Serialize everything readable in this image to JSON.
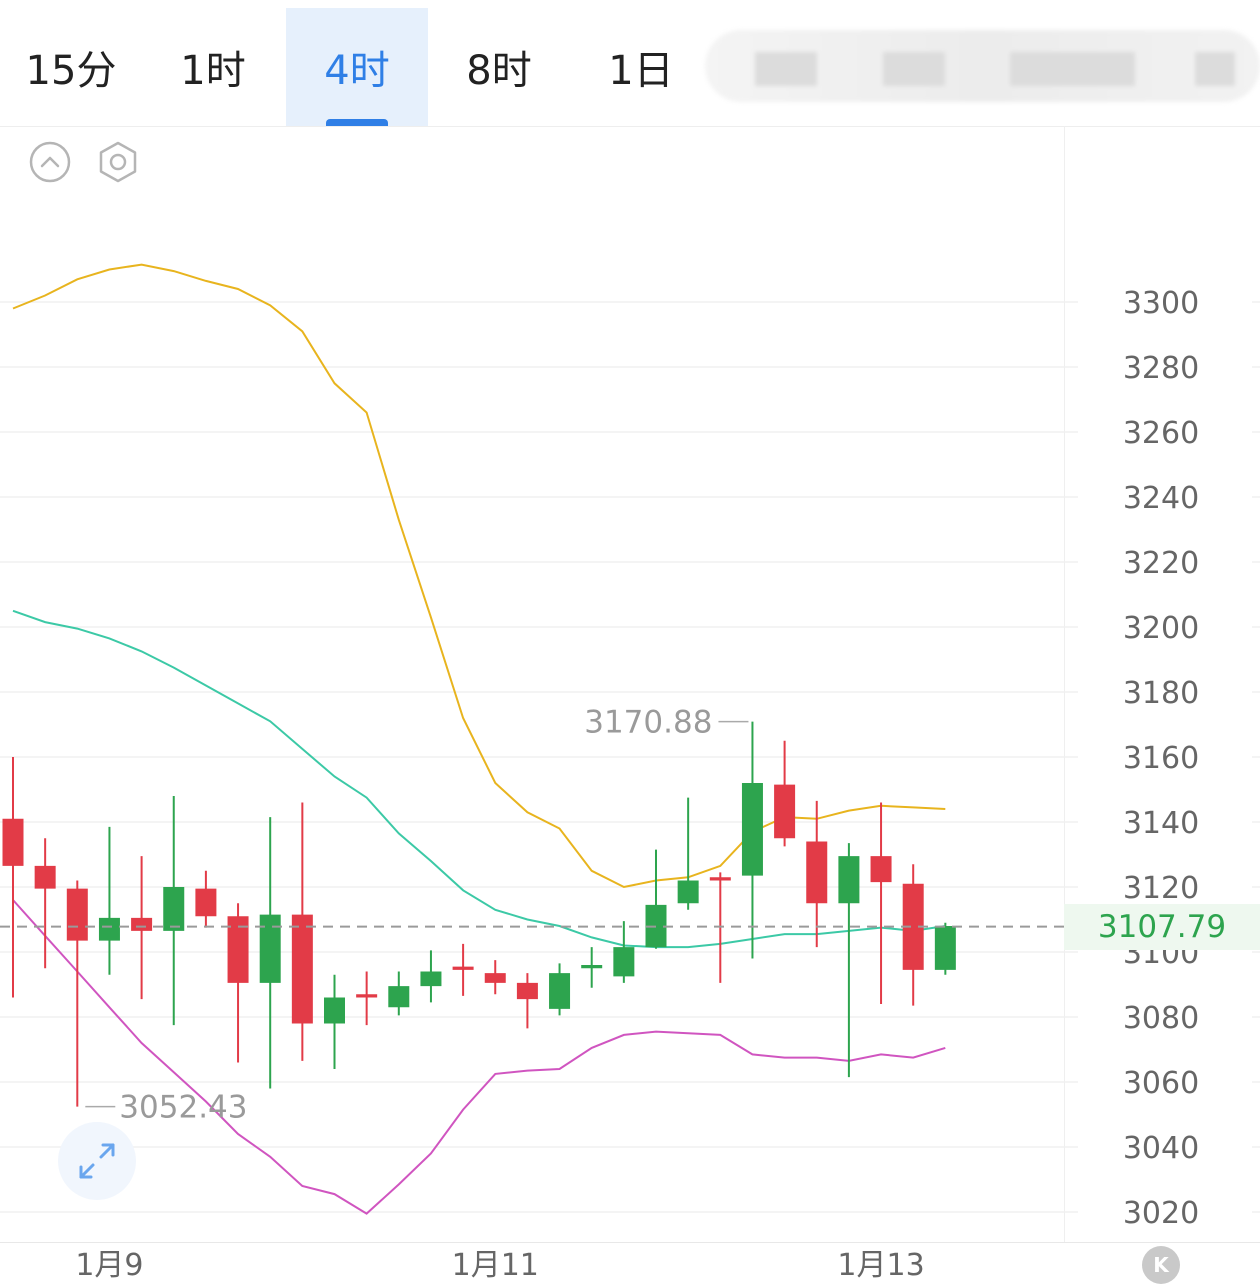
{
  "tabs": [
    {
      "label": "15分",
      "active": false
    },
    {
      "label": "1时",
      "active": false
    },
    {
      "label": "4时",
      "active": true
    },
    {
      "label": "8时",
      "active": false
    },
    {
      "label": "1日",
      "active": false
    }
  ],
  "icons": {
    "collapse": "chevron-up-circle-icon",
    "settings": "hexagon-settings-icon",
    "expand": "expand-arrows-icon",
    "kline": "k-icon"
  },
  "colors": {
    "up": "#2da44e",
    "down": "#e23b47",
    "upper_band": "#e8b41e",
    "middle_band": "#3cc9a6",
    "lower_band": "#d055c0",
    "accent": "#2f7fe6"
  },
  "last_price": "3107.79",
  "k_label": "K",
  "chart_data": {
    "type": "candlestick",
    "x_ticks": [
      "1月9",
      "1月11",
      "1月13"
    ],
    "x_tick_index": [
      3,
      15,
      27
    ],
    "y_ticks": [
      "3300",
      "3280",
      "3260",
      "3240",
      "3220",
      "3200",
      "3180",
      "3160",
      "3140",
      "3120",
      "3100",
      "3080",
      "3060",
      "3040",
      "3020"
    ],
    "ylim": [
      3015,
      3310
    ],
    "grid": true,
    "high_label": "3170.88",
    "low_label": "3052.43",
    "last_value": 3107.79,
    "candles": [
      {
        "o": 3141.0,
        "h": 3160.0,
        "l": 3086.0,
        "c": 3126.5
      },
      {
        "o": 3126.5,
        "h": 3135.0,
        "l": 3095.0,
        "c": 3119.5
      },
      {
        "o": 3119.5,
        "h": 3122.0,
        "l": 3052.43,
        "c": 3103.5
      },
      {
        "o": 3103.5,
        "h": 3138.5,
        "l": 3093.0,
        "c": 3110.5
      },
      {
        "o": 3110.5,
        "h": 3129.5,
        "l": 3085.5,
        "c": 3106.5
      },
      {
        "o": 3106.5,
        "h": 3148.0,
        "l": 3077.5,
        "c": 3120.0
      },
      {
        "o": 3119.5,
        "h": 3125.0,
        "l": 3107.5,
        "c": 3111.0
      },
      {
        "o": 3111.0,
        "h": 3115.0,
        "l": 3066.0,
        "c": 3090.5
      },
      {
        "o": 3090.5,
        "h": 3141.5,
        "l": 3058.0,
        "c": 3111.5
      },
      {
        "o": 3111.5,
        "h": 3146.0,
        "l": 3066.5,
        "c": 3078.0
      },
      {
        "o": 3078.0,
        "h": 3093.0,
        "l": 3064.0,
        "c": 3086.0
      },
      {
        "o": 3087.0,
        "h": 3094.0,
        "l": 3077.5,
        "c": 3086.0
      },
      {
        "o": 3083.0,
        "h": 3094.0,
        "l": 3080.5,
        "c": 3089.5
      },
      {
        "o": 3089.5,
        "h": 3100.5,
        "l": 3084.5,
        "c": 3094.0
      },
      {
        "o": 3095.5,
        "h": 3102.5,
        "l": 3086.5,
        "c": 3094.5
      },
      {
        "o": 3093.5,
        "h": 3097.5,
        "l": 3087.0,
        "c": 3090.5
      },
      {
        "o": 3090.5,
        "h": 3093.5,
        "l": 3076.5,
        "c": 3085.5
      },
      {
        "o": 3082.5,
        "h": 3096.5,
        "l": 3080.5,
        "c": 3093.5
      },
      {
        "o": 3095.0,
        "h": 3101.5,
        "l": 3089.0,
        "c": 3096.0
      },
      {
        "o": 3092.5,
        "h": 3109.5,
        "l": 3090.5,
        "c": 3101.5
      },
      {
        "o": 3101.5,
        "h": 3131.5,
        "l": 3101.0,
        "c": 3114.5
      },
      {
        "o": 3115.0,
        "h": 3147.5,
        "l": 3113.0,
        "c": 3122.0
      },
      {
        "o": 3123.0,
        "h": 3124.5,
        "l": 3090.5,
        "c": 3122.0
      },
      {
        "o": 3123.5,
        "h": 3170.88,
        "l": 3098.0,
        "c": 3152.0
      },
      {
        "o": 3151.5,
        "h": 3165.0,
        "l": 3132.5,
        "c": 3135.0
      },
      {
        "o": 3134.0,
        "h": 3146.5,
        "l": 3101.5,
        "c": 3115.0
      },
      {
        "o": 3115.0,
        "h": 3133.5,
        "l": 3061.5,
        "c": 3129.5
      },
      {
        "o": 3129.5,
        "h": 3146.0,
        "l": 3084.0,
        "c": 3121.5
      },
      {
        "o": 3121.0,
        "h": 3127.0,
        "l": 3083.5,
        "c": 3094.5
      },
      {
        "o": 3094.5,
        "h": 3109.0,
        "l": 3093.0,
        "c": 3108.0
      }
    ],
    "bands": {
      "upper": [
        3298.0,
        3302.0,
        3307.0,
        3310.0,
        3311.5,
        3309.5,
        3306.5,
        3304.0,
        3299.0,
        3291.0,
        3275.0,
        3266.0,
        3233.0,
        3203.0,
        3172.0,
        3152.0,
        3143.0,
        3138.0,
        3125.0,
        3120.0,
        3122.0,
        3123.0,
        3126.5,
        3137.0,
        3141.5,
        3141.0,
        3143.5,
        3145.0,
        3144.5,
        3144.0
      ],
      "middle": [
        3205.0,
        3201.5,
        3199.5,
        3196.5,
        3192.5,
        3187.5,
        3182.0,
        3176.5,
        3171.0,
        3162.5,
        3154.0,
        3147.5,
        3136.5,
        3128.0,
        3119.0,
        3113.0,
        3110.0,
        3108.0,
        3104.5,
        3102.0,
        3101.5,
        3101.5,
        3102.5,
        3104.0,
        3105.5,
        3105.5,
        3106.5,
        3107.5,
        3106.5,
        3108.0
      ],
      "lower": [
        3116.0,
        3105.0,
        3094.0,
        3083.0,
        3072.0,
        3063.0,
        3054.0,
        3044.0,
        3037.0,
        3028.0,
        3025.5,
        3019.5,
        3028.5,
        3038.0,
        3051.5,
        3062.5,
        3063.5,
        3064.0,
        3070.5,
        3074.5,
        3075.5,
        3075.0,
        3074.5,
        3068.5,
        3067.5,
        3067.5,
        3066.5,
        3068.5,
        3067.5,
        3070.5
      ]
    }
  }
}
